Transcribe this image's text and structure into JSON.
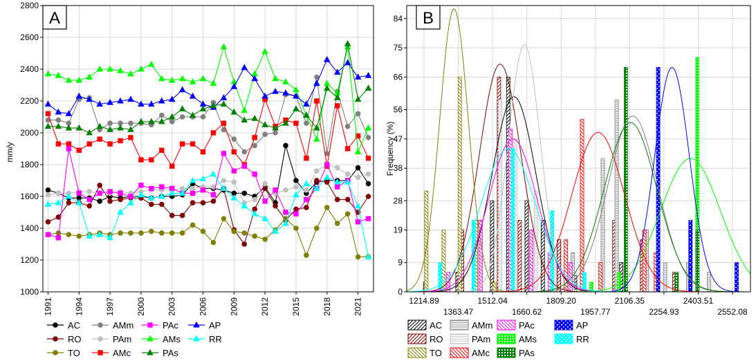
{
  "chart_data": [
    {
      "type": "line",
      "panel_label": "A",
      "ylabel": "mm/y",
      "ylim": [
        1000,
        2800
      ],
      "yticks": [
        "1000",
        "1200",
        "1400",
        "1600",
        "1800",
        "2000",
        "2200",
        "2400",
        "2600",
        "2800"
      ],
      "x": [
        1991,
        1992,
        1993,
        1994,
        1995,
        1996,
        1997,
        1998,
        1999,
        2000,
        2001,
        2002,
        2003,
        2004,
        2005,
        2006,
        2007,
        2008,
        2009,
        2010,
        2011,
        2012,
        2013,
        2014,
        2015,
        2016,
        2017,
        2018,
        2019,
        2020,
        2021,
        2022
      ],
      "xticks": [
        "1991",
        "1994",
        "1997",
        "2000",
        "2003",
        "2006",
        "2009",
        "2012",
        "2015",
        "2018",
        "2021"
      ],
      "xlim": [
        1990.5,
        2022.5
      ],
      "grid": true,
      "series": [
        {
          "name": "AC",
          "color": "#000000",
          "marker": "circle",
          "values": [
            1640,
            1620,
            1590,
            1590,
            1590,
            1570,
            1600,
            1590,
            1600,
            1600,
            1590,
            1600,
            1600,
            1610,
            1680,
            1650,
            1650,
            1640,
            1620,
            1620,
            1600,
            1660,
            1560,
            1920,
            1700,
            1620,
            1690,
            1700,
            1700,
            1700,
            1780,
            1680
          ]
        },
        {
          "name": "RO",
          "color": "#800000",
          "marker": "circle",
          "values": [
            1440,
            1470,
            1560,
            1560,
            1540,
            1670,
            1570,
            1580,
            1590,
            1590,
            1550,
            1550,
            1480,
            1480,
            1560,
            1560,
            1570,
            1650,
            1390,
            1300,
            1520,
            1650,
            1540,
            1450,
            1520,
            1530,
            1700,
            1690,
            1580,
            1580,
            1500,
            1600
          ]
        },
        {
          "name": "TO",
          "color": "#808000",
          "marker": "circle",
          "values": [
            1360,
            1370,
            1360,
            1350,
            1360,
            1370,
            1360,
            1370,
            1370,
            1370,
            1380,
            1370,
            1370,
            1370,
            1420,
            1380,
            1310,
            1460,
            1380,
            1370,
            1350,
            1330,
            1390,
            1460,
            1400,
            1230,
            1400,
            1530,
            1430,
            1490,
            1220,
            1220
          ]
        },
        {
          "name": "AMm",
          "color": "#808080",
          "marker": "circle",
          "values": [
            2080,
            2080,
            2060,
            2210,
            2220,
            2020,
            2060,
            2060,
            2060,
            2060,
            2050,
            2110,
            2070,
            2100,
            2100,
            2100,
            2190,
            2020,
            1960,
            1880,
            1920,
            1990,
            2000,
            2240,
            2230,
            2060,
            2350,
            1870,
            2260,
            2040,
            2120,
            1970
          ]
        },
        {
          "name": "PAm",
          "color": "#c0c0c0",
          "marker": "circle",
          "values": [
            1610,
            1620,
            1620,
            1630,
            1630,
            1620,
            1620,
            1630,
            1620,
            1630,
            1640,
            1640,
            1640,
            1650,
            1650,
            1660,
            1660,
            1700,
            1690,
            1560,
            1580,
            1680,
            1620,
            1640,
            1660,
            1640,
            1760,
            1800,
            1780,
            1740,
            1720,
            1740
          ]
        },
        {
          "name": "AMc",
          "color": "#ff0000",
          "marker": "square",
          "values": [
            2120,
            1930,
            1930,
            1890,
            1930,
            1960,
            1930,
            1950,
            1970,
            1830,
            1830,
            1890,
            1790,
            1930,
            1930,
            1880,
            2000,
            2060,
            1880,
            1800,
            1970,
            2210,
            2040,
            2080,
            2060,
            1840,
            2200,
            1790,
            2170,
            1900,
            1980,
            1840
          ]
        },
        {
          "name": "PAc",
          "color": "#ff00ff",
          "marker": "square",
          "values": [
            1360,
            1340,
            1900,
            1620,
            1580,
            1620,
            1630,
            1620,
            1600,
            1670,
            1650,
            1660,
            1650,
            1620,
            1620,
            1640,
            1610,
            1870,
            1760,
            1790,
            1740,
            1570,
            1640,
            1500,
            1490,
            1580,
            1650,
            1800,
            1660,
            1700,
            1440,
            1460
          ]
        },
        {
          "name": "AMs",
          "color": "#00ff00",
          "marker": "triangle",
          "values": [
            2370,
            2360,
            2330,
            2330,
            2350,
            2400,
            2400,
            2390,
            2370,
            2400,
            2430,
            2340,
            2330,
            2340,
            2320,
            2340,
            2310,
            2540,
            2320,
            2140,
            2370,
            2510,
            2340,
            2320,
            2270,
            2110,
            1960,
            2310,
            2250,
            2540,
            1880,
            2030
          ]
        },
        {
          "name": "AP",
          "color": "#0000ff",
          "marker": "triangle",
          "values": [
            2180,
            2130,
            2120,
            2230,
            2210,
            2180,
            2190,
            2200,
            2210,
            2180,
            2180,
            2200,
            2210,
            2270,
            2230,
            2180,
            2160,
            2220,
            2290,
            2410,
            2340,
            2230,
            2260,
            2250,
            2230,
            2180,
            2310,
            2460,
            2380,
            2440,
            2350,
            2360
          ]
        },
        {
          "name": "PAs",
          "color": "#008000",
          "marker": "triangle",
          "values": [
            2040,
            2040,
            2030,
            2030,
            2000,
            2040,
            2020,
            2030,
            2020,
            2070,
            2070,
            2070,
            2100,
            2150,
            2110,
            2150,
            2170,
            2180,
            2130,
            2080,
            2090,
            2050,
            2030,
            2060,
            2150,
            2110,
            2030,
            2280,
            2220,
            2560,
            2210,
            2280
          ]
        },
        {
          "name": "RR",
          "color": "#00ffff",
          "marker": "triangle",
          "values": [
            1550,
            1560,
            1600,
            1560,
            1350,
            1360,
            1340,
            1500,
            1560,
            1610,
            1590,
            1600,
            1620,
            1620,
            1700,
            1710,
            1740,
            1650,
            1590,
            1540,
            1490,
            1460,
            1380,
            1430,
            1610,
            1680,
            1650,
            1720,
            1690,
            1690,
            1540,
            1220
          ]
        }
      ]
    },
    {
      "type": "bar",
      "panel_label": "B",
      "ylabel": "Frequency (%)",
      "ylim": [
        0,
        88
      ],
      "yticks": [
        "0",
        "9",
        "19",
        "28",
        "38",
        "47",
        "56",
        "66",
        "75",
        "84"
      ],
      "xlim": [
        1140,
        2630
      ],
      "xticks": [
        "1214.89",
        "1363.47",
        "1512.04",
        "1660.62",
        "1809.20",
        "1957.77",
        "2106.35",
        "2254.93",
        "2403.51",
        "2552.08"
      ],
      "grid": true,
      "series": [
        {
          "name": "AC",
          "color": "#000000",
          "hatch": "diag-fwd",
          "bars": [
            [
              1220,
              3
            ],
            [
              1360,
              6
            ],
            [
              1510,
              28
            ],
            [
              1580,
              66
            ],
            [
              1660,
              28
            ],
            [
              1730,
              22
            ],
            [
              1800,
              16
            ],
            [
              1870,
              5
            ],
            [
              2070,
              9
            ]
          ],
          "fit": {
            "mean": 1605,
            "sd": 95,
            "peak": 60
          }
        },
        {
          "name": "RO",
          "color": "#800000",
          "hatch": "diag-fwd",
          "bars": [
            [
              1380,
              19
            ],
            [
              1460,
              22
            ],
            [
              1540,
              66
            ],
            [
              1630,
              22
            ],
            [
              1800,
              16
            ],
            [
              2040,
              22
            ],
            [
              2160,
              16
            ],
            [
              2300,
              6
            ]
          ],
          "fit": {
            "mean": 1545,
            "sd": 90,
            "peak": 70
          }
        },
        {
          "name": "TO",
          "color": "#808000",
          "hatch": "diag-back",
          "bars": [
            [
              1225,
              31
            ],
            [
              1300,
              19
            ],
            [
              1370,
              66
            ],
            [
              1440,
              22
            ],
            [
              1520,
              3
            ],
            [
              1610,
              6
            ]
          ],
          "fit": {
            "mean": 1345,
            "sd": 62,
            "peak": 87
          }
        },
        {
          "name": "AMm",
          "color": "#808080",
          "hatch": "hlines",
          "bars": [
            [
              1860,
              12
            ],
            [
              1990,
              41
            ],
            [
              2050,
              59
            ],
            [
              2180,
              19
            ],
            [
              2260,
              9
            ],
            [
              2360,
              9
            ],
            [
              2450,
              6
            ]
          ],
          "fit": {
            "mean": 2120,
            "sd": 108,
            "peak": 54
          }
        },
        {
          "name": "PAm",
          "color": "#c0c0c0",
          "hatch": "hlines",
          "bars": [
            [
              1545,
              59
            ],
            [
              1610,
              47
            ],
            [
              1700,
              31
            ],
            [
              1780,
              9
            ]
          ],
          "fit": {
            "mean": 1650,
            "sd": 70,
            "peak": 76
          }
        },
        {
          "name": "AMc",
          "color": "#ff0000",
          "hatch": "diag-back",
          "bars": [
            [
              1830,
              16
            ],
            [
              1900,
              53
            ],
            [
              1980,
              9
            ],
            [
              2170,
              19
            ],
            [
              2220,
              12
            ]
          ],
          "fit": {
            "mean": 1970,
            "sd": 115,
            "peak": 49
          }
        },
        {
          "name": "PAc",
          "color": "#ff00ff",
          "hatch": "diag-back",
          "bars": [
            [
              1320,
              6
            ],
            [
              1460,
              22
            ],
            [
              1590,
              50
            ],
            [
              1680,
              19
            ],
            [
              1760,
              12
            ],
            [
              1850,
              9
            ]
          ],
          "fit": {
            "mean": 1600,
            "sd": 105,
            "peak": 47
          }
        },
        {
          "name": "AMs",
          "color": "#00ff00",
          "hatch": "grid",
          "bars": [
            [
              1940,
              3
            ],
            [
              2060,
              6
            ],
            [
              2230,
              22
            ],
            [
              2400,
              72
            ]
          ],
          "fit": {
            "mean": 2370,
            "sd": 130,
            "peak": 41
          }
        },
        {
          "name": "PAs",
          "color": "#008000",
          "hatch": "grid",
          "bars": [
            [
              2090,
              69
            ],
            [
              2310,
              6
            ],
            [
              2400,
              19
            ]
          ],
          "fit": {
            "mean": 2110,
            "sd": 115,
            "peak": 52
          }
        },
        {
          "name": "AP",
          "color": "#0000ff",
          "hatch": "bricks",
          "bars": [
            [
              2230,
              69
            ],
            [
              2370,
              22
            ],
            [
              2570,
              9
            ]
          ],
          "fit": {
            "mean": 2290,
            "sd": 75,
            "peak": 69
          }
        },
        {
          "name": "RR",
          "color": "#00ffff",
          "hatch": "bricks",
          "bars": [
            [
              1285,
              9
            ],
            [
              1430,
              22
            ],
            [
              1600,
              44
            ],
            [
              1770,
              25
            ],
            [
              1910,
              6
            ]
          ],
          "fit": {
            "mean": 1580,
            "sd": 120,
            "peak": 44
          }
        }
      ]
    }
  ]
}
